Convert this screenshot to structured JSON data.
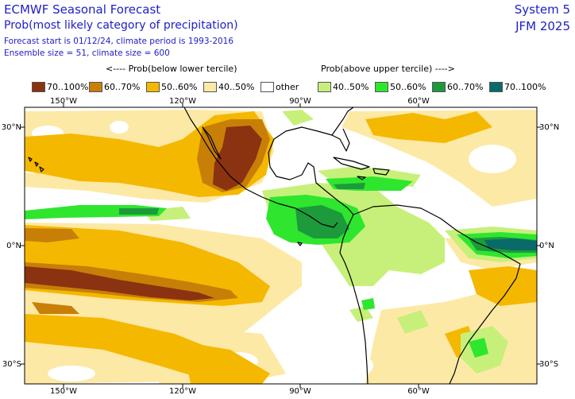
{
  "header": {
    "title": "ECMWF Seasonal Forecast",
    "subtitle": "Prob(most likely category of precipitation)",
    "forecast_info": "Forecast start is 01/12/24, climate period is 1993-2016",
    "ensemble_info": "Ensemble size = 51, climate size = 600",
    "system": "System 5",
    "period": "JFM 2025"
  },
  "legend": {
    "below_heading": "<---- Prob(below lower tercile)",
    "above_heading": "Prob(above upper tercile) ---->",
    "items": [
      {
        "label": "70..100%",
        "color": "#8b3210"
      },
      {
        "label": "60..70%",
        "color": "#c87f08"
      },
      {
        "label": "50..60%",
        "color": "#f5b800"
      },
      {
        "label": "40..50%",
        "color": "#fde9a6"
      },
      {
        "label": "other",
        "color": "#ffffff"
      },
      {
        "label": "40..50%",
        "color": "#c7f07a"
      },
      {
        "label": "50..60%",
        "color": "#2ee62e"
      },
      {
        "label": "60..70%",
        "color": "#1d9a3c"
      },
      {
        "label": "70..100%",
        "color": "#0a6a68"
      }
    ]
  },
  "map": {
    "longitude_labels": [
      "150°W",
      "120°W",
      "90°W",
      "60°W"
    ],
    "latitude_labels": [
      "30°N",
      "0°N",
      "30°S"
    ]
  }
}
